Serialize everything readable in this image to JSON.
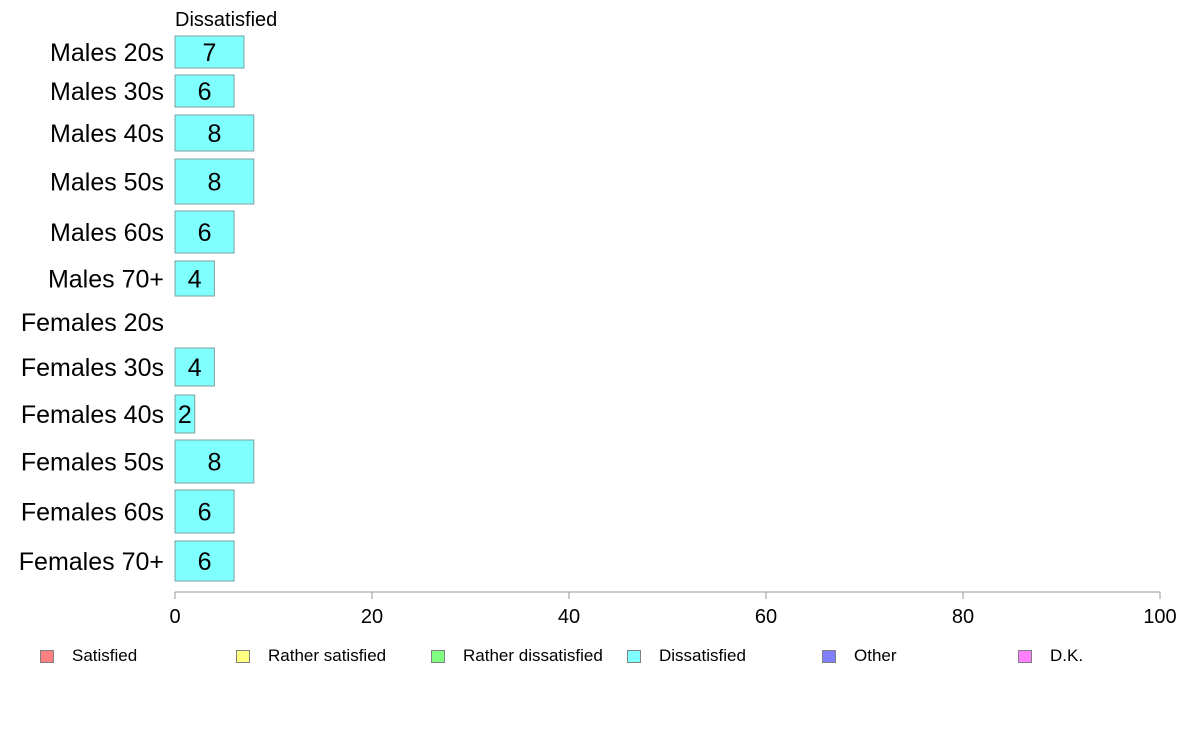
{
  "chart_data": {
    "type": "bar",
    "orientation": "horizontal",
    "panel_title": "Dissatisfied",
    "categories": [
      "Males 20s",
      "Males 30s",
      "Males 40s",
      "Males 50s",
      "Males 60s",
      "Males 70+",
      "Females 20s",
      "Females 30s",
      "Females 40s",
      "Females 50s",
      "Females 60s",
      "Females 70+"
    ],
    "values": [
      7,
      6,
      8,
      8,
      6,
      4,
      0,
      4,
      2,
      8,
      6,
      6
    ],
    "data_labels": [
      "7",
      "6",
      "8",
      "8",
      "6",
      "4",
      "",
      "4",
      "2",
      "8",
      "6",
      "6"
    ],
    "xlim": [
      0,
      100
    ],
    "xticks": [
      0,
      20,
      40,
      60,
      80,
      100
    ],
    "xtick_labels": [
      "0",
      "20",
      "40",
      "60",
      "80",
      "100"
    ],
    "bar_color": "#80ffff",
    "grid": false,
    "legend_position": "bottom",
    "legend": [
      {
        "label": "Satisfied",
        "color": "#ff8080"
      },
      {
        "label": "Rather satisfied",
        "color": "#ffff80"
      },
      {
        "label": "Rather dissatisfied",
        "color": "#80ff80"
      },
      {
        "label": "Dissatisfied",
        "color": "#80ffff"
      },
      {
        "label": "Other",
        "color": "#8080ff"
      },
      {
        "label": "D.K.",
        "color": "#ff80ff"
      }
    ]
  }
}
